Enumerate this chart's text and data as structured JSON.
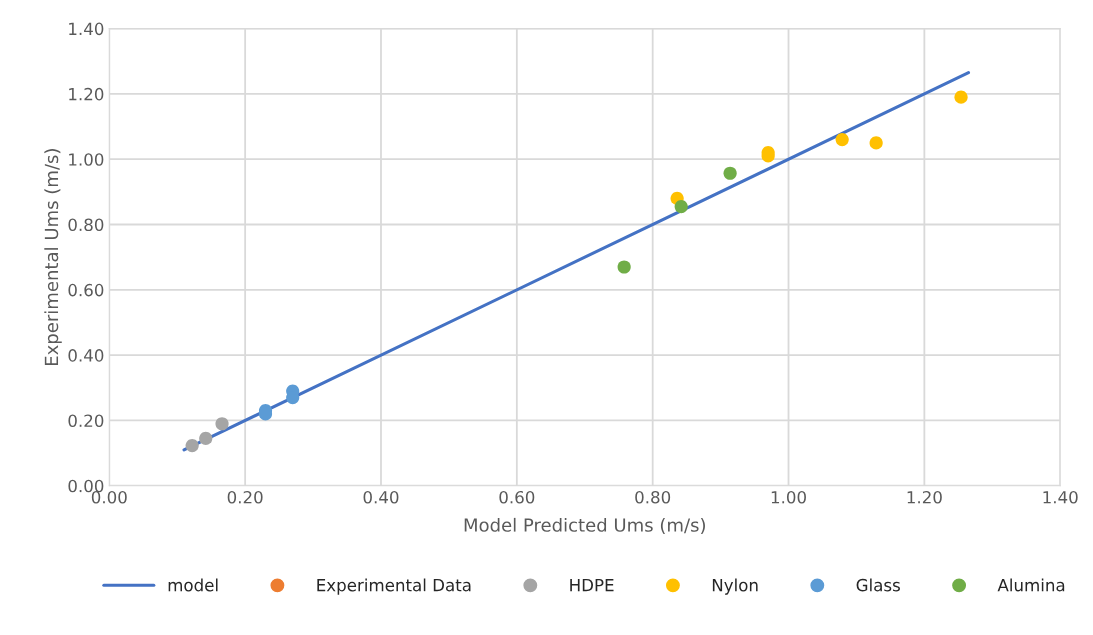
{
  "chart_data": {
    "type": "scatter",
    "xlabel": "Model Predicted Ums (m/s)",
    "ylabel": "Experimental Ums (m/s)",
    "xlim": [
      0,
      1.4
    ],
    "ylim": [
      0,
      1.4
    ],
    "xticks": [
      {
        "value": 0,
        "label": "0.00"
      },
      {
        "value": 0.2,
        "label": "0.20"
      },
      {
        "value": 0.4,
        "label": "0.40"
      },
      {
        "value": 0.6,
        "label": "0.60"
      },
      {
        "value": 0.8,
        "label": "0.80"
      },
      {
        "value": 1.0,
        "label": "1.00"
      },
      {
        "value": 1.2,
        "label": "1.20"
      },
      {
        "value": 1.4,
        "label": "1.40"
      }
    ],
    "yticks": [
      {
        "value": 0,
        "label": "0.00"
      },
      {
        "value": 0.2,
        "label": "0.20"
      },
      {
        "value": 0.4,
        "label": "0.40"
      },
      {
        "value": 0.6,
        "label": "0.60"
      },
      {
        "value": 0.8,
        "label": "0.80"
      },
      {
        "value": 1.0,
        "label": "1.00"
      },
      {
        "value": 1.2,
        "label": "1.20"
      },
      {
        "value": 1.4,
        "label": "1.40"
      }
    ],
    "grid": true,
    "legend": "bottom",
    "marker": "circle",
    "series": [
      {
        "name": "model",
        "type": "line",
        "color": "#4472c4",
        "marker": "none",
        "x": [
          0.11,
          1.265
        ],
        "values": [
          0.11,
          1.265
        ]
      },
      {
        "name": "Experimental Data",
        "color": "#ed7d31"
      },
      {
        "name": "HDPE",
        "color": "#a5a5a5",
        "x": [
          0.122,
          0.142,
          0.166
        ],
        "values": [
          0.123,
          0.145,
          0.19
        ]
      },
      {
        "name": "Nylon",
        "color": "#ffc000",
        "x": [
          0.836,
          0.97,
          0.97,
          1.079,
          1.129,
          1.254
        ],
        "values": [
          0.88,
          1.02,
          1.01,
          1.06,
          1.05,
          1.19
        ]
      },
      {
        "name": "Glass",
        "color": "#5b9bd5",
        "x": [
          0.23,
          0.23,
          0.27,
          0.27
        ],
        "values": [
          0.23,
          0.22,
          0.29,
          0.27
        ]
      },
      {
        "name": "Alumina",
        "color": "#70ad47",
        "x": [
          0.758,
          0.842,
          0.914
        ],
        "values": [
          0.67,
          0.855,
          0.957
        ]
      }
    ]
  }
}
